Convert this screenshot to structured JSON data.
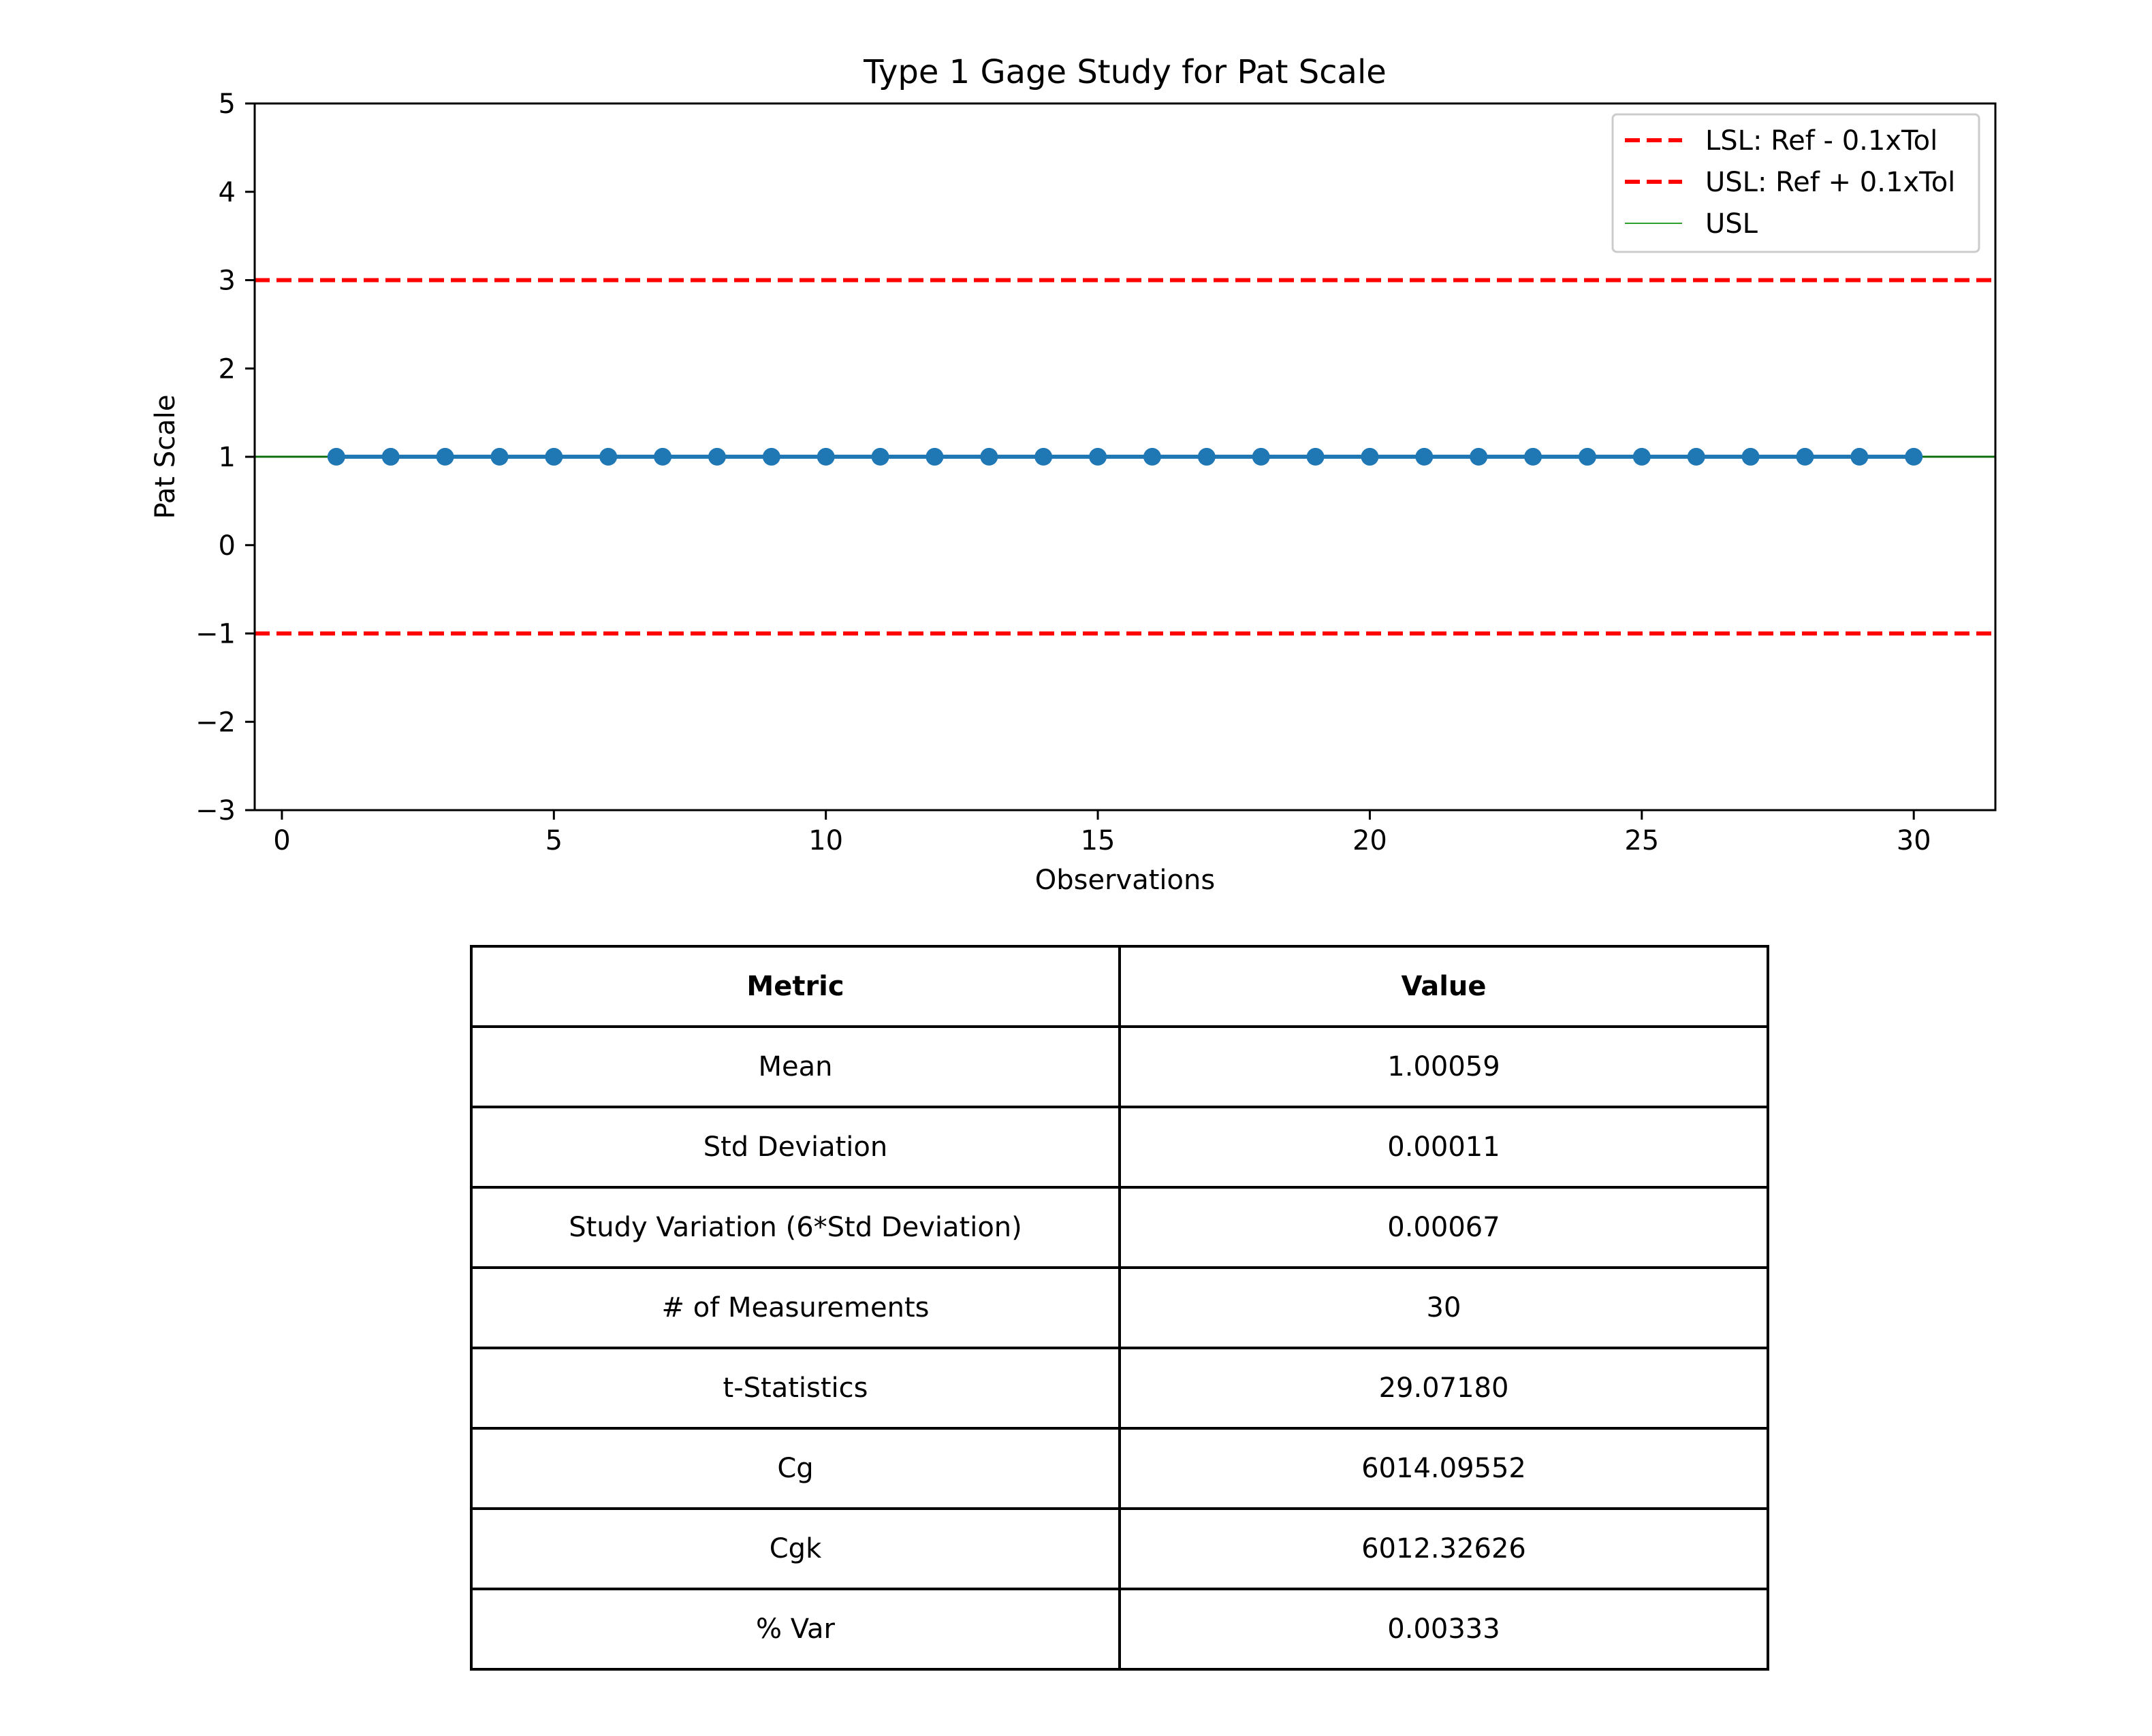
{
  "chart_data": {
    "type": "line",
    "title": "Type 1 Gage Study for Pat Scale",
    "xlabel": "Observations",
    "ylabel": "Pat Scale",
    "xlim": [
      -0.5,
      31.5
    ],
    "ylim": [
      -3,
      5
    ],
    "xticks": [
      0,
      5,
      10,
      15,
      20,
      25,
      30
    ],
    "yticks": [
      5,
      4,
      3,
      2,
      1,
      0,
      -1,
      -2,
      -3
    ],
    "ytick_labels": [
      "5",
      "4",
      "3",
      "2",
      "1",
      "0",
      "−1",
      "−2",
      "−3"
    ],
    "grid": false,
    "legend_position": "top-right",
    "series": [
      {
        "name": "",
        "color": "#1f77b4",
        "marker": "circle",
        "x": [
          1,
          2,
          3,
          4,
          5,
          6,
          7,
          8,
          9,
          10,
          11,
          12,
          13,
          14,
          15,
          16,
          17,
          18,
          19,
          20,
          21,
          22,
          23,
          24,
          25,
          26,
          27,
          28,
          29,
          30
        ],
        "values": [
          1.0006,
          1.0005,
          1.0006,
          1.0006,
          1.0005,
          1.0006,
          1.0007,
          1.0006,
          1.0005,
          1.0006,
          1.0006,
          1.0005,
          1.0006,
          1.0006,
          1.0007,
          1.0006,
          1.0005,
          1.0006,
          1.0006,
          1.0005,
          1.0006,
          1.0007,
          1.0006,
          1.0005,
          1.0006,
          1.0006,
          1.0005,
          1.0006,
          1.0006,
          1.0006
        ]
      }
    ],
    "reference_lines": [
      {
        "name": "LSL: Ref - 0.1xTol",
        "y": -1,
        "color": "#ff0000",
        "style": "dashed"
      },
      {
        "name": "USL: Ref + 0.1xTol",
        "y": 3,
        "color": "#ff0000",
        "style": "dashed"
      },
      {
        "name": "USL",
        "y": 1,
        "color": "#2ca02c",
        "style": "solid"
      }
    ],
    "mean_line": {
      "y": 1.00059,
      "color": "#006400"
    }
  },
  "table": {
    "headers": [
      "Metric",
      "Value"
    ],
    "rows": [
      [
        "Mean",
        "1.00059"
      ],
      [
        "Std Deviation",
        "0.00011"
      ],
      [
        "Study Variation (6*Std Deviation)",
        "0.00067"
      ],
      [
        "# of Measurements",
        "30"
      ],
      [
        "t-Statistics",
        "29.07180"
      ],
      [
        "Cg",
        "6014.09552"
      ],
      [
        "Cgk",
        "6012.32626"
      ],
      [
        "% Var",
        "0.00333"
      ]
    ]
  }
}
